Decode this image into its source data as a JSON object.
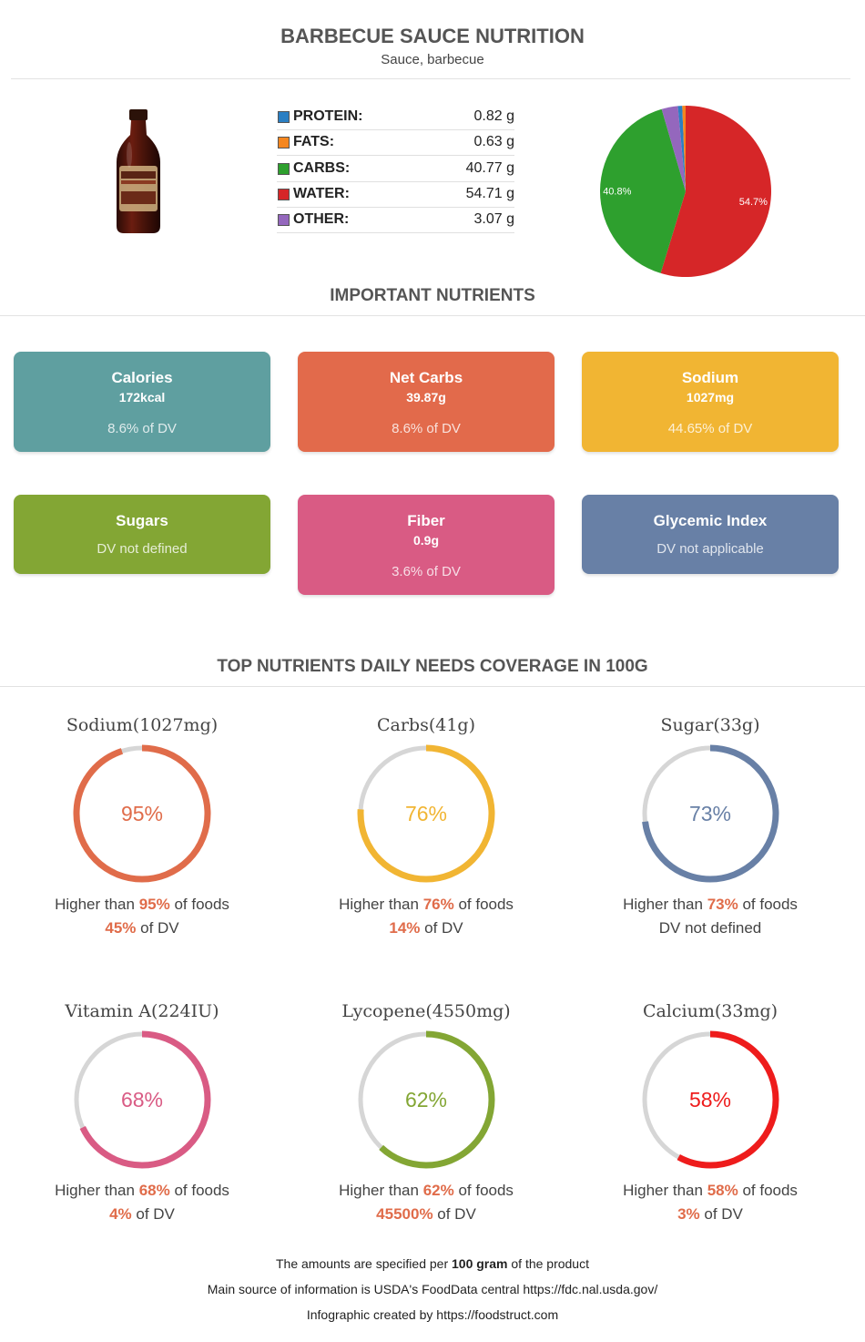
{
  "header": {
    "title": "BARBECUE SAUCE NUTRITION",
    "subtitle": "Sauce, barbecue"
  },
  "product_image": {
    "icon": "barbecue-sauce-bottle",
    "label_lines": [
      "WHITE",
      "TANKEE",
      "BARBECUE",
      "SAUCE"
    ]
  },
  "macros": [
    {
      "label": "PROTEIN:",
      "value": "0.82 g",
      "color": "#2b7fc3"
    },
    {
      "label": "FATS:",
      "value": "0.63 g",
      "color": "#f5861f"
    },
    {
      "label": "CARBS:",
      "value": "40.77 g",
      "color": "#2ea02e"
    },
    {
      "label": "WATER:",
      "value": "54.71 g",
      "color": "#d62628"
    },
    {
      "label": "OTHER:",
      "value": "3.07 g",
      "color": "#9467bd"
    }
  ],
  "chart_data": {
    "type": "pie",
    "categories": [
      "Water",
      "Carbs",
      "Other",
      "Protein",
      "Fats"
    ],
    "values": [
      54.71,
      40.77,
      3.07,
      0.82,
      0.63
    ],
    "colors": [
      "#d62628",
      "#2ea02e",
      "#9467bd",
      "#2b7fc3",
      "#f5861f"
    ],
    "slice_labels": [
      "54.7%",
      "40.8%",
      "",
      "",
      ""
    ]
  },
  "important": {
    "title": "IMPORTANT NUTRIENTS",
    "cards": [
      {
        "name": "Calories",
        "value": "172kcal",
        "dv": "8.6% of DV",
        "color": "#5f9fa0"
      },
      {
        "name": "Net Carbs",
        "value": "39.87g",
        "dv": "8.6% of DV",
        "color": "#e26a4b"
      },
      {
        "name": "Sodium",
        "value": "1027mg",
        "dv": "44.65% of DV",
        "color": "#f1b533"
      },
      {
        "name": "Sugars",
        "value": "",
        "dv": "DV not defined",
        "color": "#83a634"
      },
      {
        "name": "Fiber",
        "value": "0.9g",
        "dv": "3.6% of DV",
        "color": "#d95b84"
      },
      {
        "name": "Glycemic Index",
        "value": "",
        "dv": "DV not applicable",
        "color": "#6880a6"
      }
    ]
  },
  "coverage": {
    "title": "TOP NUTRIENTS DAILY NEEDS COVERAGE IN 100G",
    "higher_prefix": "Higher than ",
    "higher_suffix": " of foods",
    "dv_suffix": " of DV",
    "items": [
      {
        "title": "Sodium(1027mg)",
        "percent": 95,
        "percent_text": "95%",
        "color": "#e06c4a",
        "dv": "45%",
        "dv_text": ""
      },
      {
        "title": "Carbs(41g)",
        "percent": 76,
        "percent_text": "76%",
        "color": "#f1b533",
        "dv": "14%",
        "dv_text": ""
      },
      {
        "title": "Sugar(33g)",
        "percent": 73,
        "percent_text": "73%",
        "color": "#6880a6",
        "dv": "",
        "dv_text": "DV not defined"
      },
      {
        "title": "Vitamin A(224IU)",
        "percent": 68,
        "percent_text": "68%",
        "color": "#d95b84",
        "dv": "4%",
        "dv_text": ""
      },
      {
        "title": "Lycopene(4550mg)",
        "percent": 62,
        "percent_text": "62%",
        "color": "#83a634",
        "dv": "45500%",
        "dv_text": ""
      },
      {
        "title": "Calcium(33mg)",
        "percent": 58,
        "percent_text": "58%",
        "color": "#ee1c1c",
        "dv": "3%",
        "dv_text": ""
      }
    ]
  },
  "footer": {
    "line1_prefix": "The amounts are specified per ",
    "line1_bold": "100 gram",
    "line1_suffix": " of the product",
    "line2": "Main source of information is USDA's FoodData central https://fdc.nal.usda.gov/",
    "line3": "Infographic created by https://foodstruct.com"
  }
}
